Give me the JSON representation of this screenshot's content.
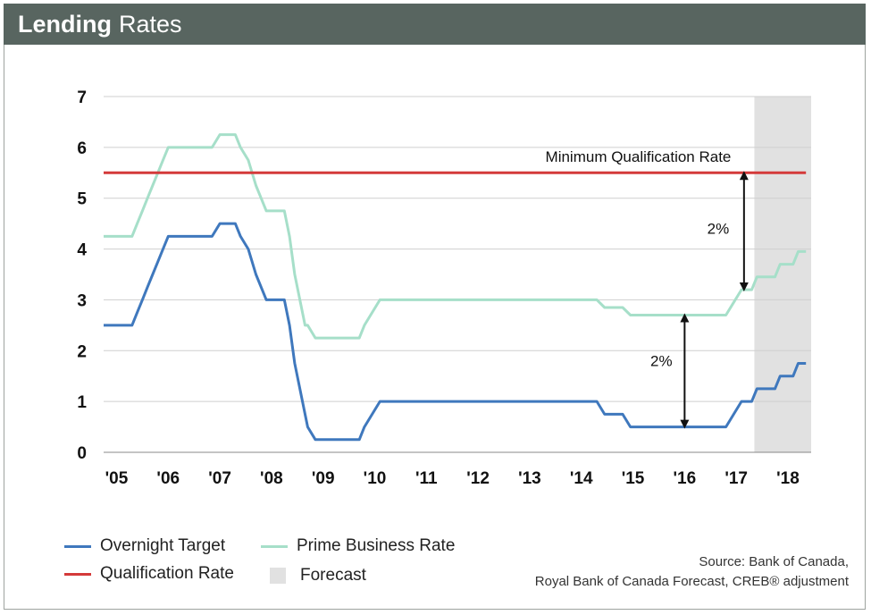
{
  "header": {
    "title_bold": "Lending",
    "title_rest": "Rates"
  },
  "colors": {
    "header_bg": "#586560",
    "overnight": "#3f78bd",
    "prime": "#a6dfc9",
    "qualification": "#d43a3a",
    "forecast": "#e1e1e1"
  },
  "chart_data": {
    "type": "line",
    "title": "Lending Rates",
    "x_tick_labels": [
      "'05",
      "'06",
      "'07",
      "'08",
      "'09",
      "'10",
      "'11",
      "'12",
      "'13",
      "'14",
      "'15",
      "'16",
      "'17",
      "'18"
    ],
    "x_range": [
      2005,
      2018.7
    ],
    "ylim": [
      0,
      7
    ],
    "y_ticks": [
      0,
      1,
      2,
      3,
      4,
      5,
      6,
      7
    ],
    "grid": true,
    "forecast_range": [
      2017.6,
      2018.7
    ],
    "series": [
      {
        "name": "Overnight Target",
        "color": "#3f78bd",
        "points": [
          [
            2005.0,
            2.5
          ],
          [
            2005.55,
            2.5
          ],
          [
            2005.65,
            2.75
          ],
          [
            2005.75,
            3.0
          ],
          [
            2005.85,
            3.25
          ],
          [
            2005.95,
            3.5
          ],
          [
            2006.05,
            3.75
          ],
          [
            2006.15,
            4.0
          ],
          [
            2006.25,
            4.25
          ],
          [
            2007.1,
            4.25
          ],
          [
            2007.25,
            4.5
          ],
          [
            2007.55,
            4.5
          ],
          [
            2007.65,
            4.25
          ],
          [
            2007.8,
            4.0
          ],
          [
            2007.95,
            3.5
          ],
          [
            2008.05,
            3.25
          ],
          [
            2008.15,
            3.0
          ],
          [
            2008.5,
            3.0
          ],
          [
            2008.6,
            2.5
          ],
          [
            2008.7,
            1.75
          ],
          [
            2008.8,
            1.25
          ],
          [
            2008.9,
            0.75
          ],
          [
            2008.95,
            0.5
          ],
          [
            2009.1,
            0.25
          ],
          [
            2009.95,
            0.25
          ],
          [
            2010.05,
            0.5
          ],
          [
            2010.2,
            0.75
          ],
          [
            2010.35,
            1.0
          ],
          [
            2014.55,
            1.0
          ],
          [
            2014.7,
            0.75
          ],
          [
            2014.9,
            0.75
          ],
          [
            2015.05,
            0.75
          ],
          [
            2015.2,
            0.5
          ],
          [
            2016.95,
            0.5
          ],
          [
            2017.05,
            0.5
          ],
          [
            2017.2,
            0.75
          ],
          [
            2017.35,
            1.0
          ],
          [
            2017.55,
            1.0
          ],
          [
            2017.65,
            1.25
          ],
          [
            2018.0,
            1.25
          ],
          [
            2018.1,
            1.5
          ],
          [
            2018.35,
            1.5
          ],
          [
            2018.45,
            1.75
          ],
          [
            2018.6,
            1.75
          ]
        ]
      },
      {
        "name": "Prime Business Rate",
        "color": "#a6dfc9",
        "points": [
          [
            2005.0,
            4.25
          ],
          [
            2005.55,
            4.25
          ],
          [
            2005.65,
            4.5
          ],
          [
            2005.75,
            4.75
          ],
          [
            2005.85,
            5.0
          ],
          [
            2005.95,
            5.25
          ],
          [
            2006.05,
            5.5
          ],
          [
            2006.15,
            5.75
          ],
          [
            2006.25,
            6.0
          ],
          [
            2007.1,
            6.0
          ],
          [
            2007.25,
            6.25
          ],
          [
            2007.55,
            6.25
          ],
          [
            2007.65,
            6.0
          ],
          [
            2007.8,
            5.75
          ],
          [
            2007.95,
            5.25
          ],
          [
            2008.05,
            5.0
          ],
          [
            2008.15,
            4.75
          ],
          [
            2008.5,
            4.75
          ],
          [
            2008.6,
            4.25
          ],
          [
            2008.7,
            3.5
          ],
          [
            2008.8,
            3.0
          ],
          [
            2008.9,
            2.5
          ],
          [
            2008.95,
            2.5
          ],
          [
            2009.1,
            2.25
          ],
          [
            2009.95,
            2.25
          ],
          [
            2010.05,
            2.5
          ],
          [
            2010.2,
            2.75
          ],
          [
            2010.35,
            3.0
          ],
          [
            2014.55,
            3.0
          ],
          [
            2014.7,
            2.85
          ],
          [
            2015.05,
            2.85
          ],
          [
            2015.2,
            2.7
          ],
          [
            2016.95,
            2.7
          ],
          [
            2017.05,
            2.7
          ],
          [
            2017.2,
            2.95
          ],
          [
            2017.35,
            3.2
          ],
          [
            2017.55,
            3.2
          ],
          [
            2017.65,
            3.45
          ],
          [
            2018.0,
            3.45
          ],
          [
            2018.1,
            3.7
          ],
          [
            2018.35,
            3.7
          ],
          [
            2018.45,
            3.95
          ],
          [
            2018.6,
            3.95
          ]
        ]
      },
      {
        "name": "Qualification Rate",
        "color": "#d43a3a",
        "points": [
          [
            2005.0,
            5.5
          ],
          [
            2018.6,
            5.5
          ]
        ]
      }
    ],
    "annotations": [
      {
        "text": "Minimum Qualification Rate",
        "x": 2017.15,
        "y": 5.72
      },
      {
        "text": "2%",
        "x": 2016.9,
        "y": 4.3,
        "arrow_x": 2017.4,
        "arrow_from": 3.2,
        "arrow_to": 5.5
      },
      {
        "text": "2%",
        "x": 2015.8,
        "y": 1.7,
        "arrow_x": 2016.25,
        "arrow_from": 0.5,
        "arrow_to": 2.7
      }
    ]
  },
  "legend": {
    "items": [
      {
        "label": "Overnight Target",
        "kind": "line",
        "color": "#3f78bd"
      },
      {
        "label": "Prime Business Rate",
        "kind": "line",
        "color": "#a6dfc9"
      },
      {
        "label": "Qualification Rate",
        "kind": "line",
        "color": "#d43a3a"
      },
      {
        "label": "Forecast",
        "kind": "box",
        "color": "#e1e1e1"
      }
    ]
  },
  "source": {
    "line1": "Source: Bank of Canada,",
    "line2": "Royal Bank of Canada Forecast, CREB® adjustment"
  }
}
